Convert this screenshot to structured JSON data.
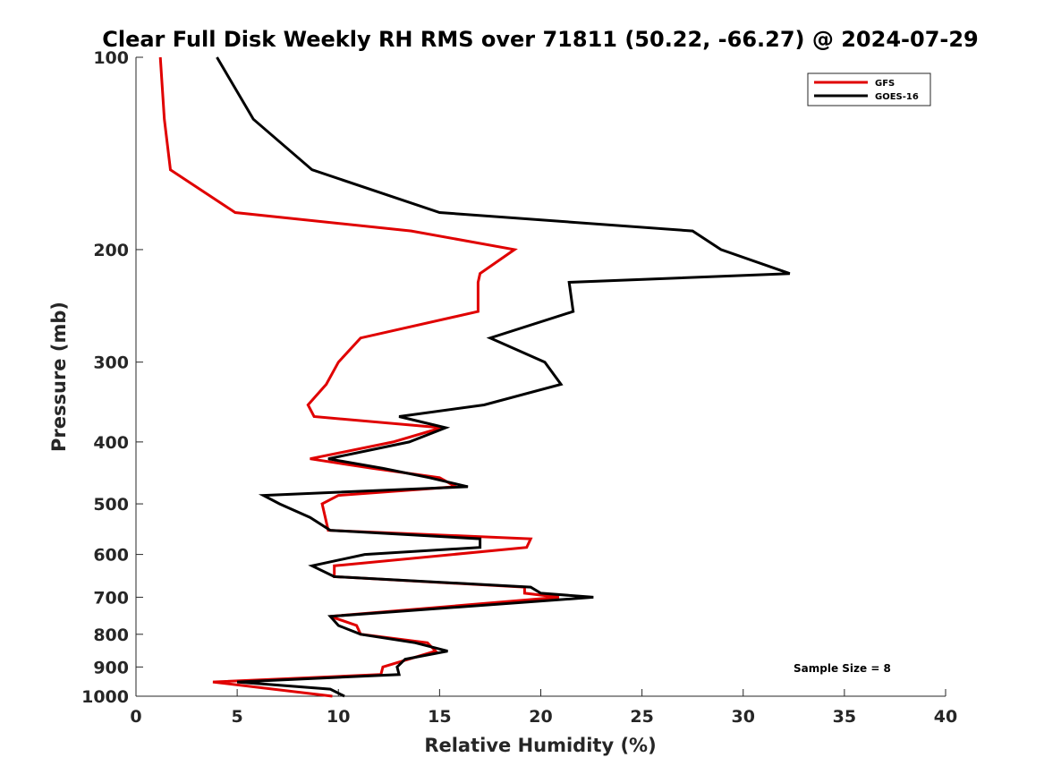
{
  "chart_data": {
    "type": "line",
    "title": "Clear Full Disk Weekly RH RMS over 71811 (50.22, -66.27) @ 2024-07-29",
    "xlabel": "Relative Humidity (%)",
    "ylabel": "Pressure (mb)",
    "xlim": [
      0,
      40
    ],
    "ylim": [
      100,
      1000
    ],
    "y_scale": "log",
    "y_reversed": true,
    "x_ticks": [
      0,
      5,
      10,
      15,
      20,
      25,
      30,
      35,
      40
    ],
    "x_tick_labels": [
      "0",
      "5",
      "10",
      "15",
      "20",
      "25",
      "30",
      "35",
      "40"
    ],
    "y_ticks": [
      100,
      200,
      300,
      400,
      500,
      600,
      700,
      800,
      900,
      1000
    ],
    "y_tick_labels": [
      "100",
      "200",
      "300",
      "400",
      "500",
      "600",
      "700",
      "800",
      "900",
      "1000"
    ],
    "grid": false,
    "legend_position": "top-right",
    "annotation": "Sample Size = 8",
    "series": [
      {
        "name": "GFS",
        "color": "#e00000",
        "points": [
          {
            "x": 1.2,
            "y": 100
          },
          {
            "x": 1.4,
            "y": 125
          },
          {
            "x": 1.7,
            "y": 150
          },
          {
            "x": 4.9,
            "y": 175
          },
          {
            "x": 13.6,
            "y": 187
          },
          {
            "x": 18.7,
            "y": 200
          },
          {
            "x": 17.0,
            "y": 218
          },
          {
            "x": 16.9,
            "y": 225
          },
          {
            "x": 16.9,
            "y": 250
          },
          {
            "x": 11.1,
            "y": 275
          },
          {
            "x": 10.0,
            "y": 300
          },
          {
            "x": 9.4,
            "y": 325
          },
          {
            "x": 8.5,
            "y": 350
          },
          {
            "x": 8.8,
            "y": 365
          },
          {
            "x": 15.1,
            "y": 380
          },
          {
            "x": 12.7,
            "y": 400
          },
          {
            "x": 8.6,
            "y": 425
          },
          {
            "x": 11.7,
            "y": 440
          },
          {
            "x": 15.0,
            "y": 455
          },
          {
            "x": 15.8,
            "y": 470
          },
          {
            "x": 10.0,
            "y": 485
          },
          {
            "x": 9.2,
            "y": 500
          },
          {
            "x": 9.5,
            "y": 550
          },
          {
            "x": 19.5,
            "y": 567
          },
          {
            "x": 19.3,
            "y": 585
          },
          {
            "x": 9.8,
            "y": 625
          },
          {
            "x": 9.8,
            "y": 650
          },
          {
            "x": 19.2,
            "y": 675
          },
          {
            "x": 19.2,
            "y": 690
          },
          {
            "x": 20.9,
            "y": 700
          },
          {
            "x": 9.6,
            "y": 750
          },
          {
            "x": 10.9,
            "y": 775
          },
          {
            "x": 11.1,
            "y": 800
          },
          {
            "x": 14.4,
            "y": 825
          },
          {
            "x": 14.8,
            "y": 850
          },
          {
            "x": 12.2,
            "y": 900
          },
          {
            "x": 12.1,
            "y": 925
          },
          {
            "x": 3.8,
            "y": 950
          },
          {
            "x": 9.7,
            "y": 1000
          }
        ]
      },
      {
        "name": "GOES-16",
        "color": "#000000",
        "points": [
          {
            "x": 4.0,
            "y": 100
          },
          {
            "x": 5.8,
            "y": 125
          },
          {
            "x": 8.7,
            "y": 150
          },
          {
            "x": 15.0,
            "y": 175
          },
          {
            "x": 27.5,
            "y": 187
          },
          {
            "x": 28.9,
            "y": 200
          },
          {
            "x": 32.3,
            "y": 218
          },
          {
            "x": 21.4,
            "y": 225
          },
          {
            "x": 21.6,
            "y": 250
          },
          {
            "x": 17.5,
            "y": 275
          },
          {
            "x": 20.2,
            "y": 300
          },
          {
            "x": 21.0,
            "y": 325
          },
          {
            "x": 17.2,
            "y": 350
          },
          {
            "x": 13.0,
            "y": 365
          },
          {
            "x": 15.3,
            "y": 380
          },
          {
            "x": 13.5,
            "y": 400
          },
          {
            "x": 9.5,
            "y": 425
          },
          {
            "x": 12.2,
            "y": 440
          },
          {
            "x": 14.5,
            "y": 455
          },
          {
            "x": 16.4,
            "y": 470
          },
          {
            "x": 6.3,
            "y": 485
          },
          {
            "x": 7.1,
            "y": 500
          },
          {
            "x": 8.6,
            "y": 525
          },
          {
            "x": 9.6,
            "y": 550
          },
          {
            "x": 17.0,
            "y": 567
          },
          {
            "x": 17.0,
            "y": 585
          },
          {
            "x": 11.3,
            "y": 600
          },
          {
            "x": 8.7,
            "y": 625
          },
          {
            "x": 9.8,
            "y": 650
          },
          {
            "x": 19.5,
            "y": 675
          },
          {
            "x": 20.0,
            "y": 690
          },
          {
            "x": 22.6,
            "y": 700
          },
          {
            "x": 9.6,
            "y": 750
          },
          {
            "x": 10.0,
            "y": 775
          },
          {
            "x": 11.1,
            "y": 800
          },
          {
            "x": 13.8,
            "y": 825
          },
          {
            "x": 15.4,
            "y": 850
          },
          {
            "x": 13.3,
            "y": 875
          },
          {
            "x": 12.9,
            "y": 900
          },
          {
            "x": 13.0,
            "y": 925
          },
          {
            "x": 5.0,
            "y": 950
          },
          {
            "x": 9.6,
            "y": 975
          },
          {
            "x": 10.3,
            "y": 1000
          }
        ]
      }
    ]
  }
}
